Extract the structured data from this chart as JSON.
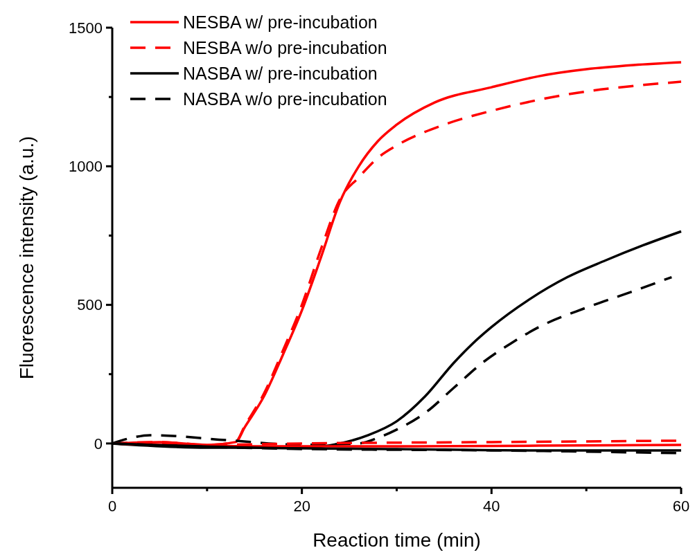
{
  "chart_data": {
    "type": "line",
    "xlabel": "Reaction time (min)",
    "ylabel": "Fluorescence intensity (a.u.)",
    "xlim": [
      0,
      60
    ],
    "xticks": [
      0,
      {
        "value": 10,
        "label": null
      },
      20,
      {
        "value": 30,
        "label": null
      },
      40,
      {
        "value": 50,
        "label": null
      },
      60
    ],
    "ylim": [
      -160,
      1500
    ],
    "yticks": [
      0,
      {
        "value": 250,
        "label": null
      },
      500,
      {
        "value": 750,
        "label": null
      },
      1000,
      {
        "value": 1250,
        "label": null
      },
      1500
    ],
    "grid": false,
    "legend": "top left",
    "series": [
      {
        "name": "NESBA w/ pre-incubation",
        "color": "#ff0000",
        "line_style": "solid",
        "x": [
          0,
          5,
          10,
          13,
          14,
          16,
          18,
          20,
          22,
          24,
          26,
          28,
          30,
          34,
          40,
          45,
          50,
          55,
          60
        ],
        "values": [
          0,
          5,
          -5,
          5,
          60,
          170,
          320,
          480,
          670,
          870,
          1000,
          1090,
          1150,
          1230,
          1285,
          1325,
          1350,
          1365,
          1375
        ]
      },
      {
        "name": "NESBA w/o pre-incubation",
        "color": "#ff0000",
        "line_style": "dashed",
        "x": [
          0,
          5,
          10,
          13,
          14,
          16,
          18,
          20,
          22,
          24,
          26,
          28,
          30,
          35,
          40,
          45,
          50,
          55,
          60
        ],
        "values": [
          0,
          5,
          -5,
          5,
          65,
          180,
          335,
          500,
          700,
          880,
          960,
          1030,
          1075,
          1150,
          1200,
          1240,
          1270,
          1290,
          1305
        ]
      },
      {
        "name": "NASBA w/ pre-incubation",
        "color": "#000000",
        "line_style": "solid",
        "x": [
          0,
          10,
          20,
          24,
          27,
          30,
          33,
          36,
          38,
          40,
          44,
          48,
          52,
          56,
          60
        ],
        "values": [
          0,
          -15,
          -15,
          0,
          30,
          80,
          170,
          290,
          360,
          420,
          520,
          600,
          660,
          715,
          765
        ]
      },
      {
        "name": "NASBA w/o pre-incubation",
        "color": "#000000",
        "line_style": "dashed",
        "x": [
          0,
          2,
          4,
          12,
          20,
          26,
          28,
          30,
          33,
          36,
          39,
          42,
          45,
          50,
          55,
          59
        ],
        "values": [
          0,
          20,
          30,
          12,
          -5,
          0,
          20,
          50,
          110,
          200,
          290,
          360,
          420,
          490,
          550,
          600
        ]
      },
      {
        "color": "#ff0000",
        "line_style": "solid",
        "x": [
          0,
          15,
          30,
          45,
          60
        ],
        "values": [
          0,
          -10,
          -10,
          -8,
          -5
        ]
      },
      {
        "color": "#ff0000",
        "line_style": "dashed",
        "x": [
          0,
          10,
          20,
          40,
          60
        ],
        "values": [
          0,
          -5,
          0,
          5,
          10
        ]
      },
      {
        "color": "#000000",
        "line_style": "solid",
        "x": [
          0,
          15,
          30,
          45,
          60
        ],
        "values": [
          0,
          -15,
          -20,
          -25,
          -25
        ]
      },
      {
        "color": "#000000",
        "line_style": "dashed",
        "x": [
          0,
          20,
          40,
          60
        ],
        "values": [
          0,
          -20,
          -25,
          -35
        ]
      }
    ]
  }
}
